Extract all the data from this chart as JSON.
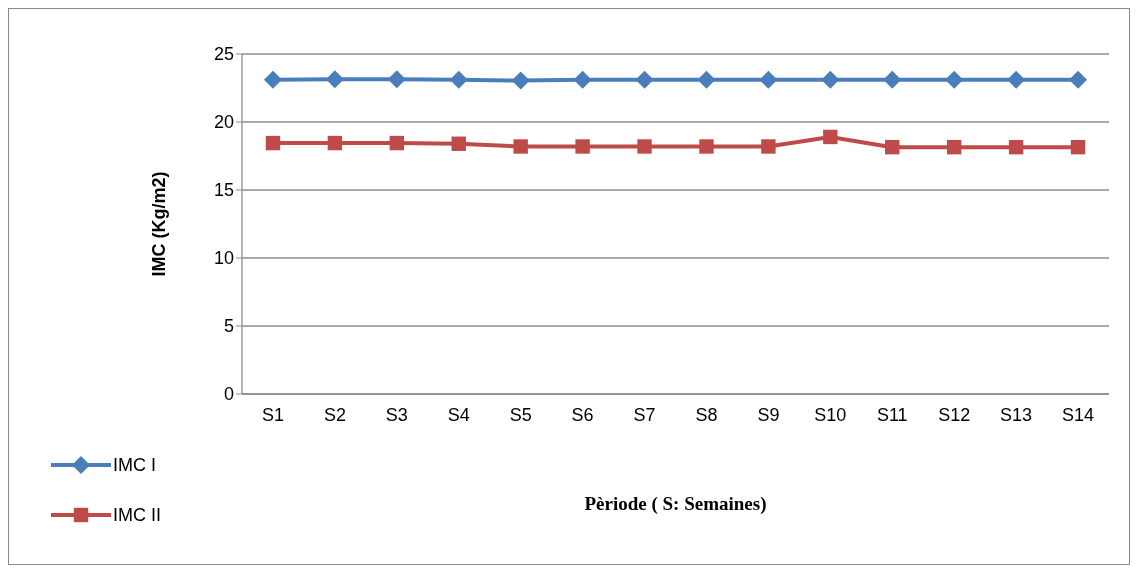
{
  "chart_data": {
    "type": "line",
    "xlabel": "Pèriode ( S: Semaines)",
    "ylabel": "IMC (Kg/m2)",
    "categories": [
      "S1",
      "S2",
      "S3",
      "S4",
      "S5",
      "S6",
      "S7",
      "S8",
      "S9",
      "S10",
      "S11",
      "S12",
      "S13",
      "S14"
    ],
    "series": [
      {
        "name": "IMC I",
        "color": "#4a7ebb",
        "marker": "diamond",
        "values": [
          23.1,
          23.15,
          23.15,
          23.1,
          23.05,
          23.1,
          23.1,
          23.1,
          23.1,
          23.1,
          23.1,
          23.1,
          23.1,
          23.1
        ]
      },
      {
        "name": "IMC II",
        "color": "#be4b48",
        "marker": "square",
        "values": [
          18.45,
          18.45,
          18.45,
          18.4,
          18.2,
          18.2,
          18.2,
          18.2,
          18.2,
          18.9,
          18.15,
          18.15,
          18.15,
          18.15
        ]
      }
    ],
    "ylim": [
      0,
      25
    ],
    "yticks": [
      0,
      5,
      10,
      15,
      20,
      25
    ],
    "grid": "y",
    "legend": "bottom left"
  }
}
